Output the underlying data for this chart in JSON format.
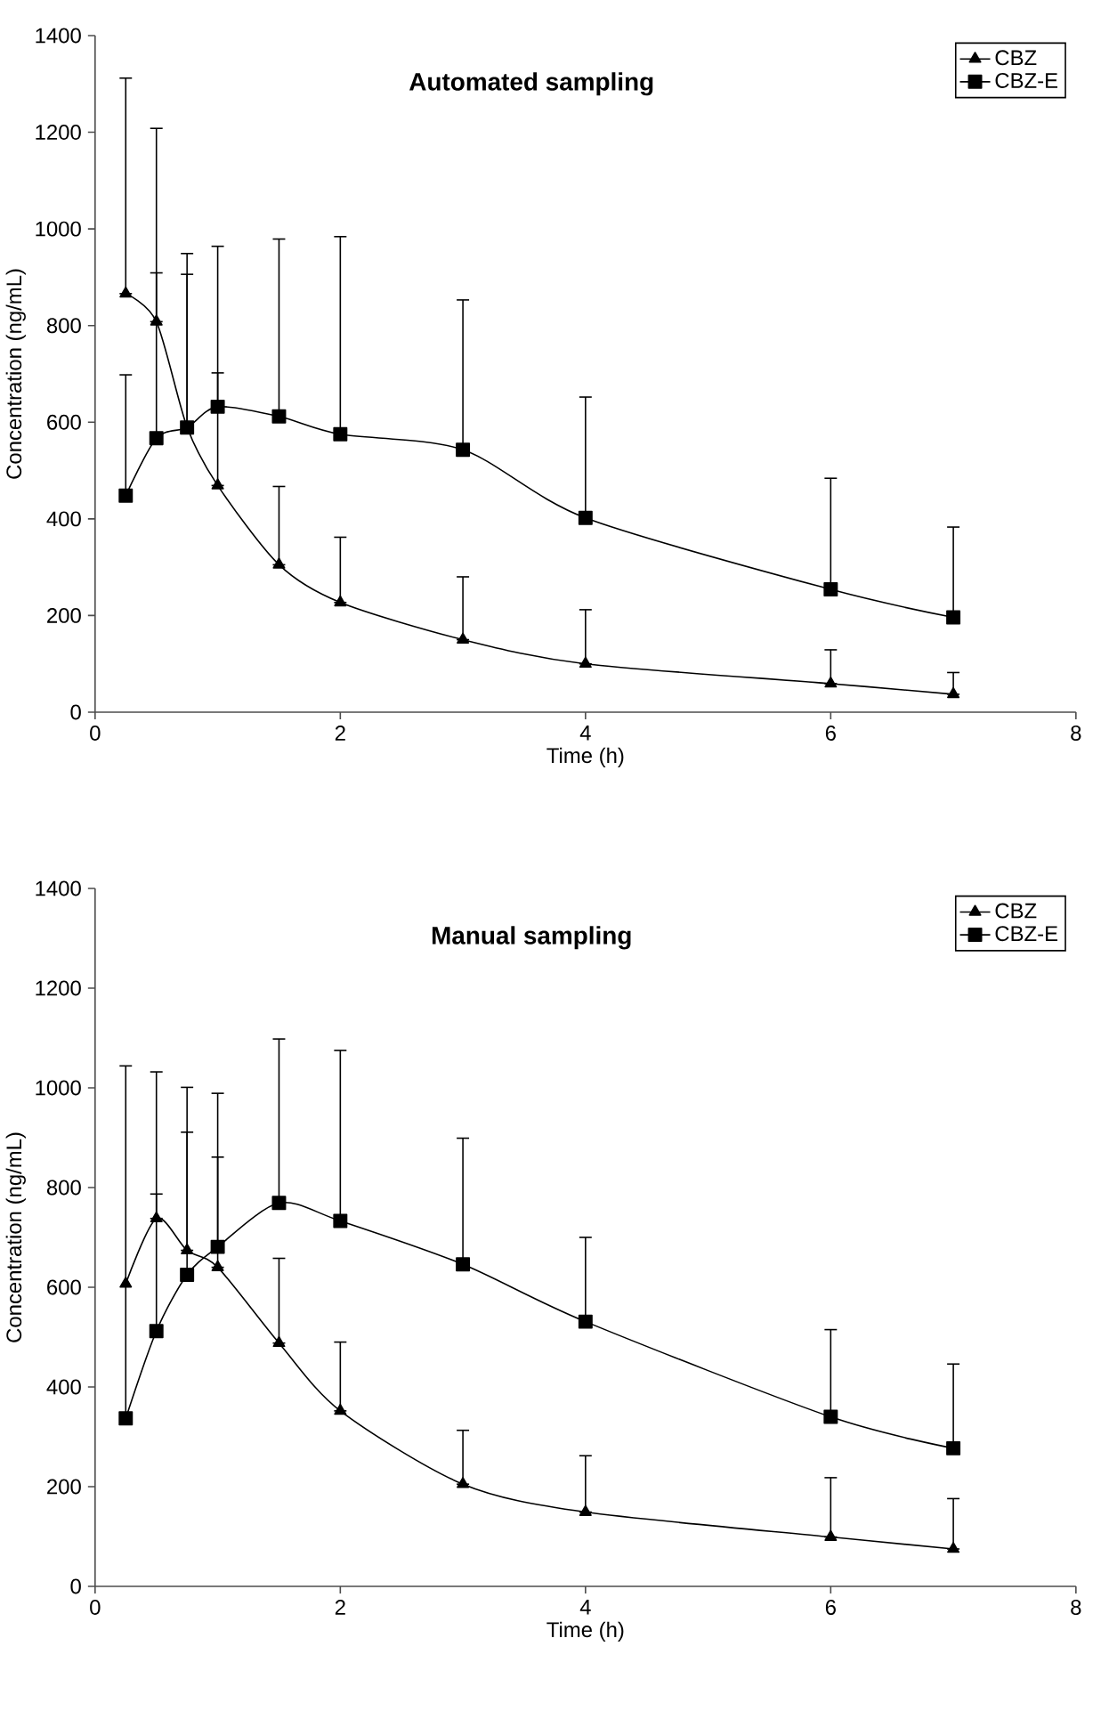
{
  "chart_data": [
    {
      "type": "line",
      "title": "Automated sampling",
      "xlabel": "Time (h)",
      "ylabel": "Concentration (ng/mL)",
      "x": [
        0.25,
        0.5,
        0.75,
        1,
        1.5,
        2,
        3,
        4,
        6,
        7
      ],
      "xlim": [
        0,
        8
      ],
      "xticks": [
        0,
        2,
        4,
        6,
        8
      ],
      "ylim": [
        0,
        1400
      ],
      "yticks": [
        0,
        200,
        400,
        600,
        800,
        1000,
        1200,
        1400
      ],
      "legend": "top right",
      "line_style": "solid",
      "series": [
        {
          "name": "CBZ",
          "color": "#000000",
          "marker": "triangle",
          "values": [
            866,
            808,
            590,
            469,
            305,
            227,
            150,
            100,
            59,
            37
          ],
          "errors": [
            [
              866,
              1312
            ],
            [
              808,
              1208
            ],
            [
              590,
              906
            ],
            [
              469,
              702
            ],
            [
              305,
              467
            ],
            [
              227,
              362
            ],
            [
              150,
              280
            ],
            [
              100,
              212
            ],
            [
              59,
              129
            ],
            [
              37,
              82
            ]
          ]
        },
        {
          "name": "CBZ-E",
          "color": "#000000",
          "marker": "square",
          "values": [
            448,
            567,
            589,
            632,
            612,
            575,
            543,
            402,
            254,
            196
          ],
          "errors": [
            [
              448,
              698
            ],
            [
              567,
              909
            ],
            [
              589,
              949
            ],
            [
              632,
              964
            ],
            [
              612,
              979
            ],
            [
              575,
              984
            ],
            [
              543,
              853
            ],
            [
              402,
              652
            ],
            [
              254,
              484
            ],
            [
              196,
              383
            ]
          ]
        }
      ]
    },
    {
      "type": "line",
      "title": "Manual sampling",
      "xlabel": "Time (h)",
      "ylabel": "Concentration (ng/mL)",
      "x": [
        0.25,
        0.5,
        0.75,
        1,
        1.5,
        2,
        3,
        4,
        6,
        7
      ],
      "xlim": [
        0,
        8
      ],
      "xticks": [
        0,
        2,
        4,
        6,
        8
      ],
      "ylim": [
        0,
        1400
      ],
      "yticks": [
        0,
        200,
        400,
        600,
        800,
        1000,
        1200,
        1400
      ],
      "legend": "top right",
      "line_style": "solid",
      "series": [
        {
          "name": "CBZ",
          "color": "#000000",
          "marker": "triangle",
          "values": [
            607,
            738,
            674,
            640,
            488,
            352,
            205,
            149,
            99,
            75
          ],
          "errors": [
            null,
            [
              738,
              787
            ],
            [
              674,
              911
            ],
            [
              640,
              861
            ],
            [
              488,
              658
            ],
            [
              352,
              490
            ],
            [
              205,
              313
            ],
            [
              149,
              262
            ],
            [
              99,
              218
            ],
            [
              75,
              176
            ]
          ]
        },
        {
          "name": "CBZ-E",
          "color": "#000000",
          "marker": "square",
          "values": [
            337,
            512,
            625,
            681,
            769,
            733,
            646,
            531,
            340,
            277
          ],
          "errors": [
            [
              337,
              1044
            ],
            [
              512,
              1032
            ],
            [
              625,
              1001
            ],
            [
              681,
              989
            ],
            [
              769,
              1098
            ],
            [
              733,
              1075
            ],
            [
              646,
              899
            ],
            [
              531,
              700
            ],
            [
              340,
              515
            ],
            [
              277,
              446
            ]
          ]
        }
      ]
    }
  ]
}
